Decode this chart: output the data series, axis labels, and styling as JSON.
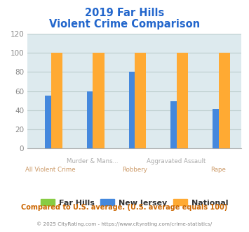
{
  "title_line1": "2019 Far Hills",
  "title_line2": "Violent Crime Comparison",
  "title_color": "#2266cc",
  "categories": [
    "All Violent Crime",
    "Murder & Mans...",
    "Robbery",
    "Aggravated Assault",
    "Rape"
  ],
  "series": {
    "Far Hills": [
      0,
      0,
      0,
      0,
      0
    ],
    "New Jersey": [
      55,
      60,
      80,
      49,
      41
    ],
    "National": [
      100,
      100,
      100,
      100,
      100
    ]
  },
  "colors": {
    "Far Hills": "#88cc44",
    "New Jersey": "#4488dd",
    "National": "#ffaa33"
  },
  "ylim": [
    0,
    120
  ],
  "yticks": [
    0,
    20,
    40,
    60,
    80,
    100,
    120
  ],
  "fig_bg": "#ffffff",
  "plot_bg": "#ddeaee",
  "grid_color": "#bbcccc",
  "label_row1": [
    "",
    "Murder & Mans...",
    "",
    "Aggravated Assault",
    ""
  ],
  "label_row2": [
    "All Violent Crime",
    "",
    "Robbery",
    "",
    "Rape"
  ],
  "label_row1_color": "#aaaaaa",
  "label_row2_color": "#cc9966",
  "footer_text": "Compared to U.S. average. (U.S. average equals 100)",
  "footer_color": "#cc6600",
  "credit_text": "© 2025 CityRating.com - https://www.cityrating.com/crime-statistics/",
  "credit_color": "#888888",
  "legend_labels": [
    "Far Hills",
    "New Jersey",
    "National"
  ],
  "legend_text_color": "#333333"
}
